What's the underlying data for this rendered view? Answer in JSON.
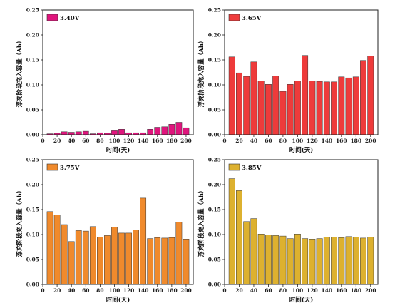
{
  "chart_data": [
    {
      "type": "bar",
      "legend": "3.40V",
      "color": "#e0157d",
      "xlabel": "时间(天)",
      "ylabel": "浮充阶段充入容量（Ah）",
      "xlim": [
        0,
        210
      ],
      "ylim": [
        0,
        0.25
      ],
      "xticks": [
        0,
        20,
        40,
        60,
        80,
        100,
        120,
        140,
        160,
        180,
        200
      ],
      "yticks": [
        "0.00",
        "0.05",
        "0.10",
        "0.15",
        "0.20",
        "0.25"
      ],
      "x": [
        10,
        20,
        30,
        40,
        50,
        60,
        70,
        80,
        90,
        100,
        110,
        120,
        130,
        140,
        150,
        160,
        170,
        180,
        190,
        200
      ],
      "values": [
        0.002,
        0.003,
        0.006,
        0.005,
        0.006,
        0.007,
        0.002,
        0.004,
        0.003,
        0.008,
        0.011,
        0.004,
        0.004,
        0.004,
        0.011,
        0.015,
        0.016,
        0.021,
        0.025,
        0.014
      ]
    },
    {
      "type": "bar",
      "legend": "3.65V",
      "color": "#ee3b3b",
      "xlabel": "时间(天)",
      "ylabel": "浮充阶段充入容量（Ah）",
      "xlim": [
        0,
        210
      ],
      "ylim": [
        0,
        0.25
      ],
      "xticks": [
        0,
        20,
        40,
        60,
        80,
        100,
        120,
        140,
        160,
        180,
        200
      ],
      "yticks": [
        "0.00",
        "0.05",
        "0.10",
        "0.15",
        "0.20",
        "0.25"
      ],
      "x": [
        10,
        20,
        30,
        40,
        50,
        60,
        70,
        80,
        90,
        100,
        110,
        120,
        130,
        140,
        150,
        160,
        170,
        180,
        190,
        200
      ],
      "values": [
        0.156,
        0.124,
        0.117,
        0.146,
        0.108,
        0.101,
        0.118,
        0.087,
        0.101,
        0.108,
        0.159,
        0.108,
        0.107,
        0.106,
        0.106,
        0.116,
        0.114,
        0.116,
        0.149,
        0.158
      ]
    },
    {
      "type": "bar",
      "legend": "3.75V",
      "color": "#f08a2c",
      "xlabel": "时间(天)",
      "ylabel": "浮充阶段充入容量（Ah）",
      "xlim": [
        0,
        210
      ],
      "ylim": [
        0,
        0.25
      ],
      "xticks": [
        0,
        20,
        40,
        60,
        80,
        100,
        120,
        140,
        160,
        180,
        200
      ],
      "yticks": [
        "0.00",
        "0.05",
        "0.10",
        "0.15",
        "0.20",
        "0.25"
      ],
      "x": [
        10,
        20,
        30,
        40,
        50,
        60,
        70,
        80,
        90,
        100,
        110,
        120,
        130,
        140,
        150,
        160,
        170,
        180,
        190,
        200
      ],
      "values": [
        0.146,
        0.139,
        0.12,
        0.086,
        0.108,
        0.107,
        0.116,
        0.095,
        0.098,
        0.115,
        0.103,
        0.103,
        0.109,
        0.173,
        0.092,
        0.094,
        0.093,
        0.094,
        0.125,
        0.091
      ]
    },
    {
      "type": "bar",
      "legend": "3.85V",
      "color": "#ddb12f",
      "xlabel": "时间(天)",
      "ylabel": "浮充阶段充入容量（Ah）",
      "xlim": [
        0,
        210
      ],
      "ylim": [
        0,
        0.25
      ],
      "xticks": [
        0,
        20,
        40,
        60,
        80,
        100,
        120,
        140,
        160,
        180,
        200
      ],
      "yticks": [
        "0.00",
        "0.05",
        "0.10",
        "0.15",
        "0.20",
        "0.25"
      ],
      "x": [
        10,
        20,
        30,
        40,
        50,
        60,
        70,
        80,
        90,
        100,
        110,
        120,
        130,
        140,
        150,
        160,
        170,
        180,
        190,
        200
      ],
      "values": [
        0.212,
        0.188,
        0.126,
        0.132,
        0.101,
        0.099,
        0.098,
        0.097,
        0.092,
        0.101,
        0.092,
        0.091,
        0.092,
        0.095,
        0.095,
        0.094,
        0.096,
        0.095,
        0.093,
        0.095
      ]
    }
  ]
}
